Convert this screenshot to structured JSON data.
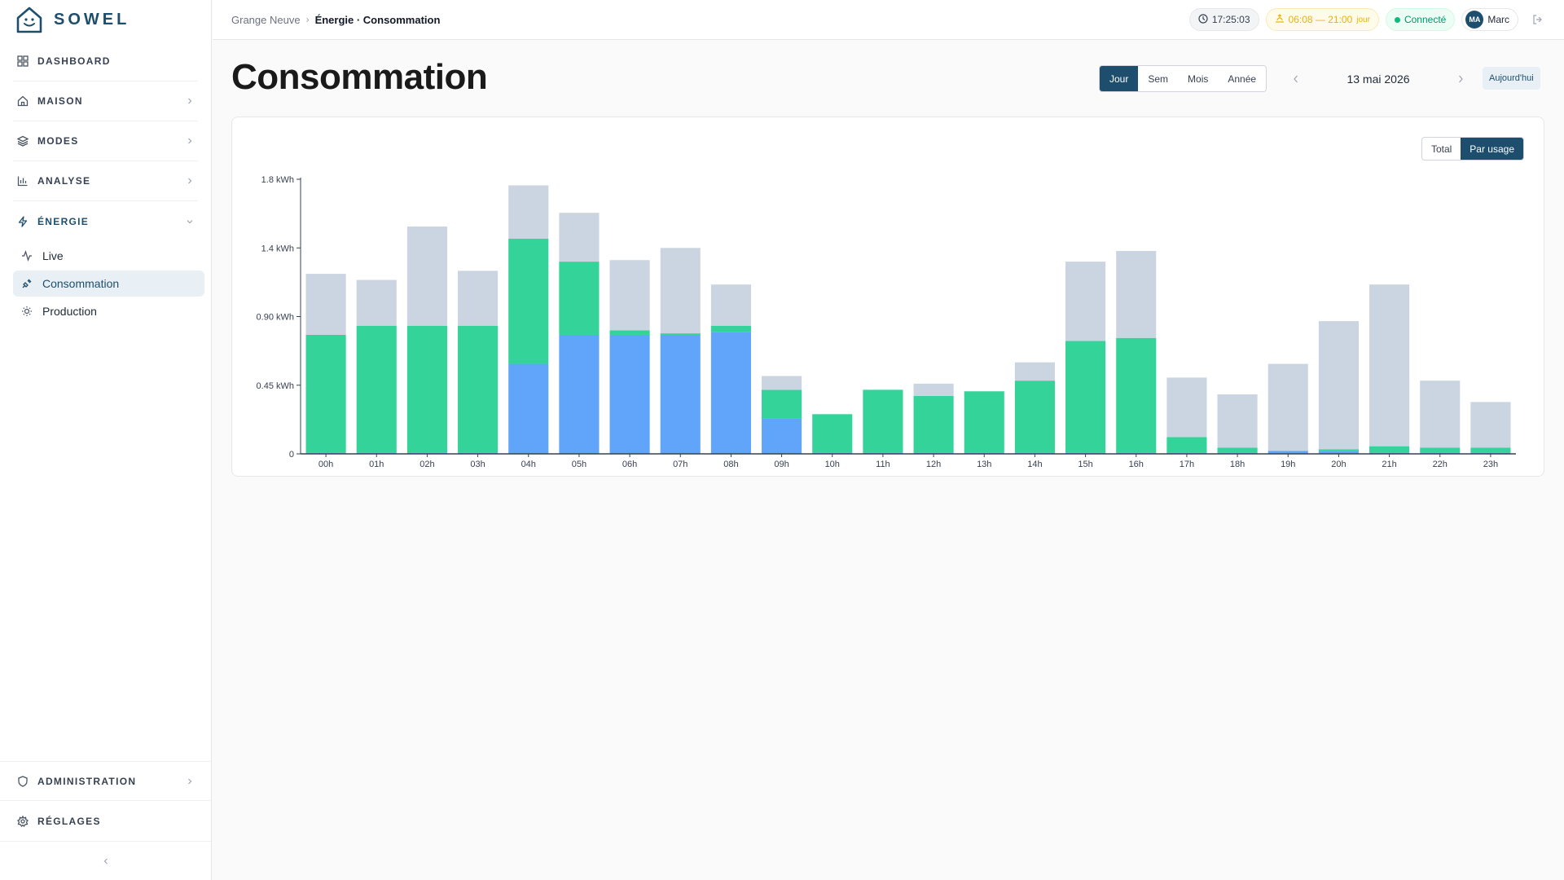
{
  "brand": {
    "name": "SOWEL"
  },
  "sidebar": {
    "sections": [
      {
        "label": "DASHBOARD"
      },
      {
        "label": "MAISON"
      },
      {
        "label": "MODES"
      },
      {
        "label": "ANALYSE"
      },
      {
        "label": "ÉNERGIE"
      }
    ],
    "energy_items": [
      {
        "label": "Live"
      },
      {
        "label": "Consommation"
      },
      {
        "label": "Production"
      }
    ],
    "bottom": [
      {
        "label": "ADMINISTRATION"
      },
      {
        "label": "RÉGLAGES"
      }
    ]
  },
  "header": {
    "breadcrumb_home": "Grange Neuve",
    "breadcrumb_current": "Énergie · Consommation",
    "time": "17:25:03",
    "sun_range": "06:08 — 21:00",
    "sun_suffix": "jour",
    "status": "Connecté",
    "user_initials": "MA",
    "user_name": "Marc"
  },
  "page": {
    "title": "Consommation",
    "periods": [
      "Jour",
      "Sem",
      "Mois",
      "Année"
    ],
    "active_period": "Jour",
    "date": "13 mai 2026",
    "today_label": "Aujourd'hui",
    "view_modes": [
      "Total",
      "Par usage"
    ],
    "active_view": "Par usage"
  },
  "colors": {
    "accent": "#1e4e6e",
    "series_blue": "#60a5fa",
    "series_green": "#34d399",
    "series_gray": "#cbd5e1"
  },
  "chart_data": {
    "type": "bar",
    "stacked": true,
    "categories": [
      "00h",
      "01h",
      "02h",
      "03h",
      "04h",
      "05h",
      "06h",
      "07h",
      "08h",
      "09h",
      "10h",
      "11h",
      "12h",
      "13h",
      "14h",
      "15h",
      "16h",
      "17h",
      "18h",
      "19h",
      "20h",
      "21h",
      "22h",
      "23h"
    ],
    "series": [
      {
        "values": [
          0.01,
          0.01,
          0.01,
          0.01,
          0.59,
          0.78,
          0.78,
          0.78,
          0.8,
          0.23,
          0.01,
          0.01,
          0.01,
          0.01,
          0.01,
          0.01,
          0.01,
          0.01,
          0.01,
          0.02,
          0.02,
          0.01,
          0.01,
          0.01
        ]
      },
      {
        "values": [
          0.77,
          0.83,
          0.83,
          0.83,
          0.82,
          0.48,
          0.03,
          0.01,
          0.04,
          0.19,
          0.25,
          0.41,
          0.37,
          0.4,
          0.47,
          0.73,
          0.75,
          0.1,
          0.03,
          0.0,
          0.01,
          0.04,
          0.03,
          0.03
        ]
      },
      {
        "values": [
          0.4,
          0.3,
          0.65,
          0.36,
          0.35,
          0.32,
          0.46,
          0.56,
          0.27,
          0.09,
          0.0,
          0.0,
          0.08,
          0.0,
          0.12,
          0.52,
          0.57,
          0.39,
          0.35,
          0.57,
          0.84,
          1.06,
          0.44,
          0.3
        ]
      }
    ],
    "yticks": [
      "0",
      "0.45 kWh",
      "0.90 kWh",
      "1.4 kWh",
      "1.8 kWh"
    ],
    "ylim": [
      0,
      1.8
    ],
    "legend": "none"
  }
}
